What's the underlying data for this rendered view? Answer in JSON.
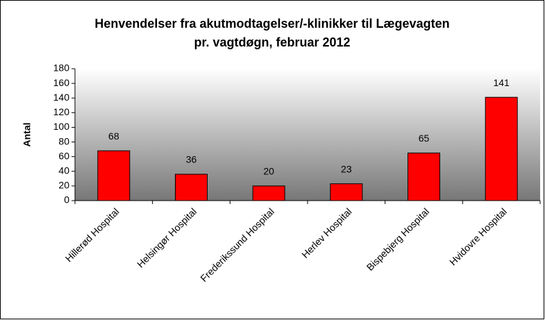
{
  "chart_data": {
    "type": "bar",
    "title": "Henvendelser fra akutmodtagelser/-klinikker til Lægevagten",
    "subtitle": "pr. vagtdøgn, februar 2012",
    "y_label": "Antal",
    "categories": [
      "Hillerød Hospital",
      "Helsingør Hospital",
      "Frederikssund Hospital",
      "Herlev Hospital",
      "Bispebjerg Hospital",
      "Hvidovre Hospital"
    ],
    "values": [
      68,
      36,
      20,
      23,
      65,
      141
    ],
    "color": "#ff0000",
    "ylim": [
      0,
      180
    ],
    "yticks": [
      0,
      20,
      40,
      60,
      80,
      100,
      120,
      140,
      160,
      180
    ],
    "grid": false
  }
}
